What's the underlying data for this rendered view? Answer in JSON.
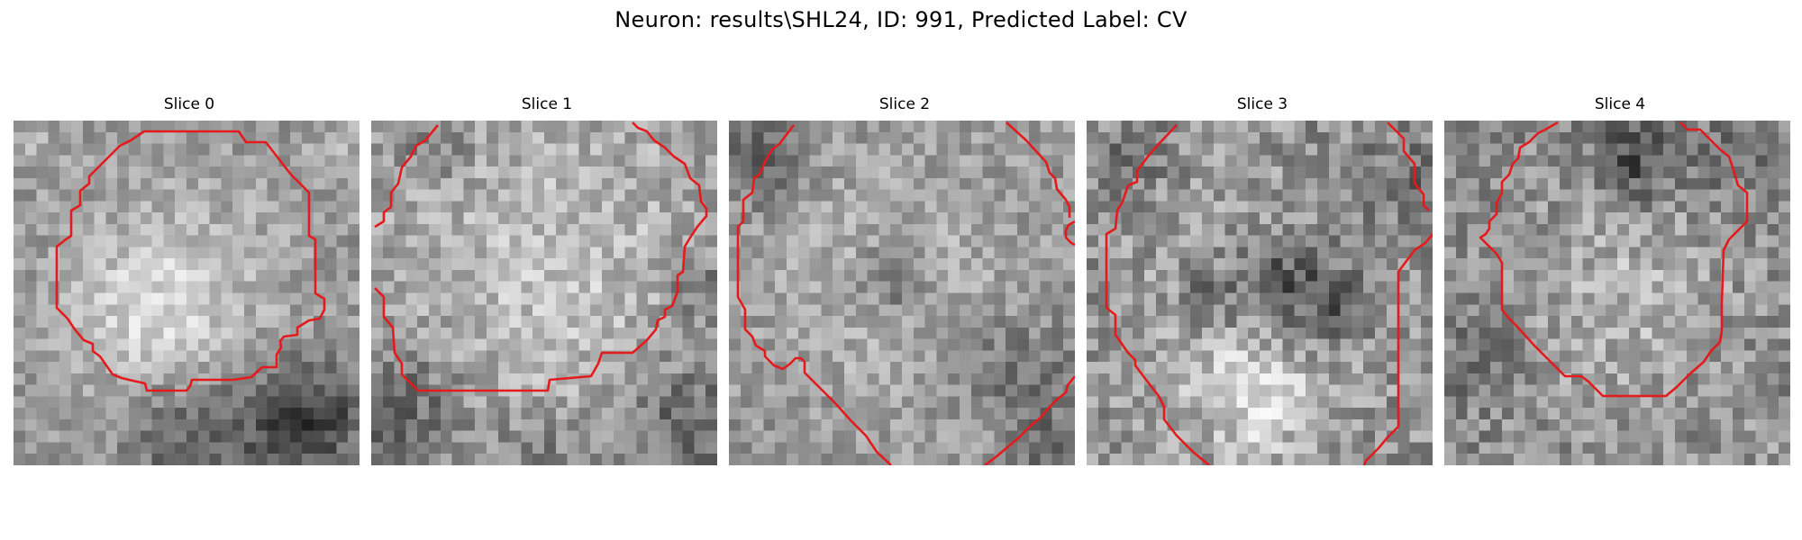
{
  "figure": {
    "title": "Neuron: results\\SHL24, ID: 991, Predicted Label: CV"
  },
  "panels": [
    {
      "title": "Slice 0"
    },
    {
      "title": "Slice 1"
    },
    {
      "title": "Slice 2"
    },
    {
      "title": "Slice 3"
    },
    {
      "title": "Slice 4"
    }
  ],
  "style": {
    "contour_color": "#e41a1c",
    "colormap": "grayscale"
  }
}
